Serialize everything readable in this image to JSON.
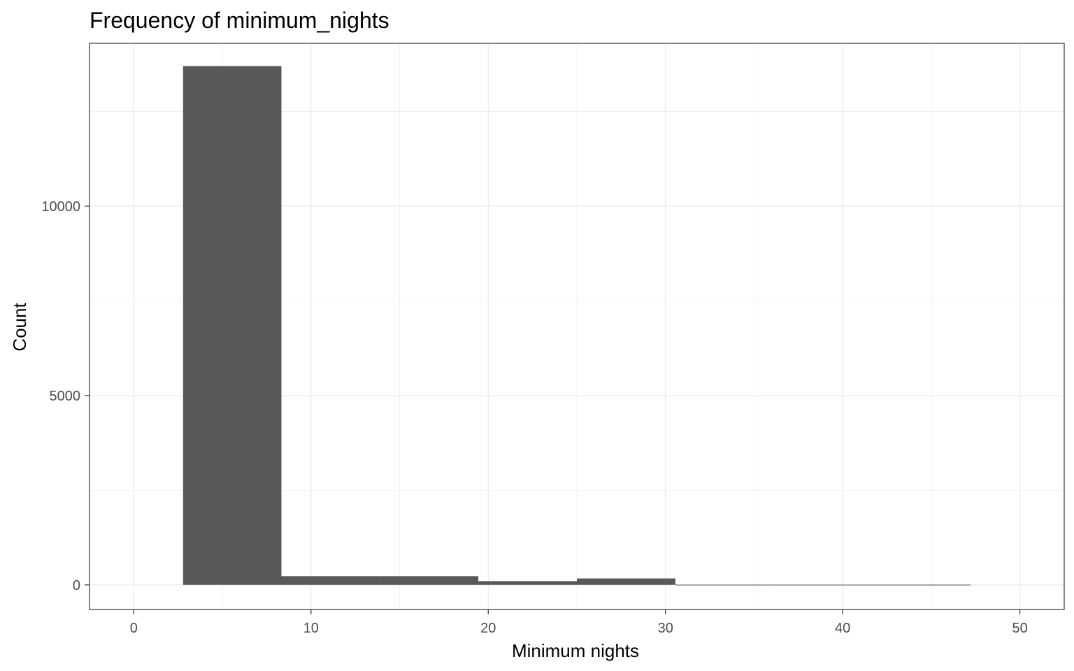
{
  "chart_data": {
    "type": "bar",
    "title": "Frequency of minimum_nights",
    "xlabel": "Minimum nights",
    "ylabel": "Count",
    "xlim": [
      -2.5,
      52.5
    ],
    "ylim": [
      -650,
      14300
    ],
    "x_ticks": [
      0,
      10,
      20,
      30,
      40,
      50
    ],
    "y_ticks": [
      0,
      5000,
      10000
    ],
    "bins": [
      {
        "x0": 2.78,
        "x1": 8.33,
        "count": 13700
      },
      {
        "x0": 8.33,
        "x1": 13.89,
        "count": 230
      },
      {
        "x0": 13.89,
        "x1": 19.44,
        "count": 230
      },
      {
        "x0": 19.44,
        "x1": 25.0,
        "count": 100
      },
      {
        "x0": 25.0,
        "x1": 30.56,
        "count": 170
      },
      {
        "x0": 30.56,
        "x1": 36.11,
        "count": 5
      },
      {
        "x0": 36.11,
        "x1": 41.67,
        "count": 5
      },
      {
        "x0": 41.67,
        "x1": 47.22,
        "count": 5
      }
    ],
    "grid": true,
    "legend": "none",
    "colors": {
      "bar": "#595959",
      "grid": "#ebebeb",
      "panel_border": "#333333",
      "tick_label": "#4d4d4d"
    }
  }
}
